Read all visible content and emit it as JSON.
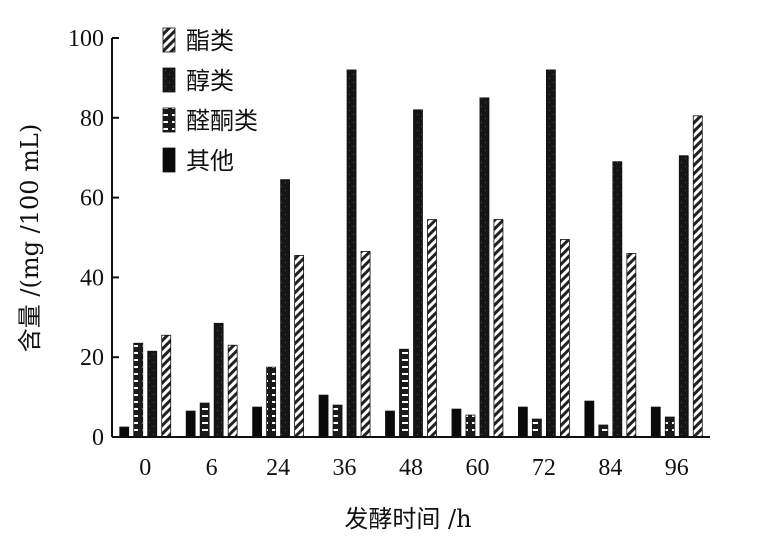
{
  "chart_data": {
    "type": "bar",
    "xlabel": "发酵时间 /h",
    "ylabel": "含量 /(mg /100 mL)",
    "categories": [
      "0",
      "6",
      "24",
      "36",
      "48",
      "60",
      "72",
      "84",
      "96"
    ],
    "ylim": [
      0,
      100
    ],
    "yticks": [
      0,
      20,
      40,
      60,
      80,
      100
    ],
    "legend_position": "top-left",
    "series": [
      {
        "name": "其他",
        "style": "solid",
        "values": [
          2.5,
          6.5,
          7.5,
          10.5,
          6.5,
          7,
          7.5,
          9,
          7.5
        ]
      },
      {
        "name": "醛酮类",
        "style": "dotted",
        "values": [
          23.5,
          8.5,
          17.5,
          8,
          22,
          5.5,
          4.5,
          3,
          5
        ]
      },
      {
        "name": "醇类",
        "style": "dark",
        "values": [
          21.5,
          28.5,
          64.5,
          92,
          82,
          85,
          92,
          69,
          70.5
        ]
      },
      {
        "name": "酯类",
        "style": "hatched",
        "values": [
          25.5,
          23,
          45.5,
          46.5,
          54.5,
          54.5,
          49.5,
          46,
          80.5
        ]
      }
    ],
    "legend_order": [
      "酯类",
      "醇类",
      "醛酮类",
      "其他"
    ]
  }
}
